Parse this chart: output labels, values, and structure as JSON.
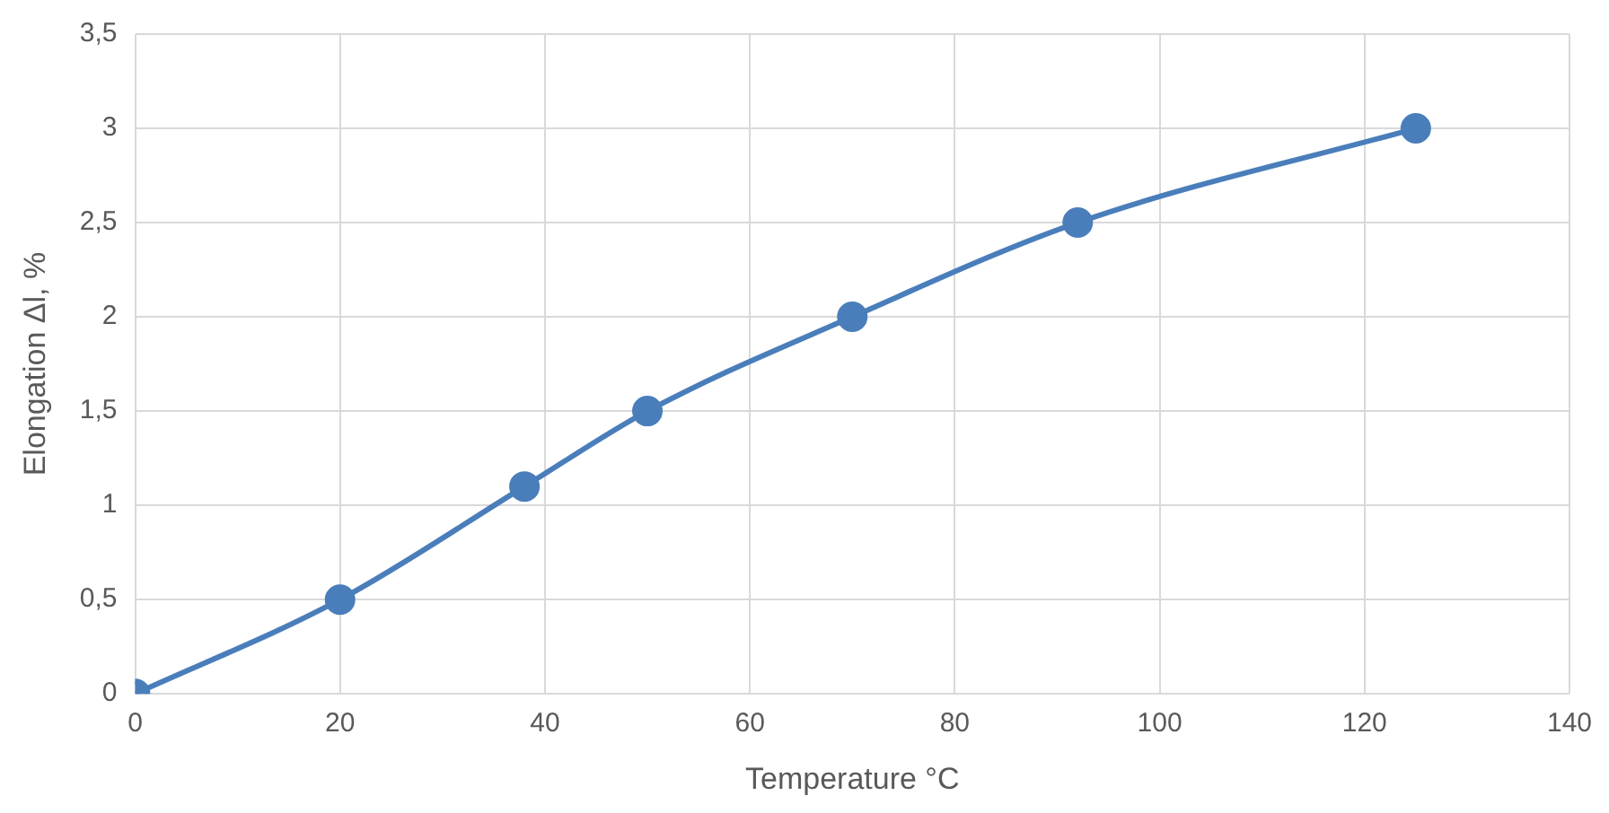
{
  "chart_data": {
    "type": "line",
    "xlabel": "Temperature °C",
    "ylabel": "Elongation Δl, %",
    "x": [
      0,
      20,
      38,
      50,
      70,
      92,
      125
    ],
    "series": [
      {
        "color": "#4a7ebb",
        "values": [
          0,
          0.5,
          1.1,
          1.5,
          2,
          2.5,
          3
        ]
      }
    ],
    "xlim": [
      0,
      140
    ],
    "xticks": [
      0,
      20,
      40,
      60,
      80,
      100,
      120,
      140
    ],
    "ylim": [
      0,
      3.5
    ],
    "yticks": [
      0,
      {
        "value": 0.5,
        "label": "0,5"
      },
      1,
      {
        "value": 1.5,
        "label": "1,5"
      },
      2,
      {
        "value": 2.5,
        "label": "2,5"
      },
      3,
      {
        "value": 3.5,
        "label": "3,5"
      }
    ],
    "grid": true,
    "marker": "circle"
  }
}
